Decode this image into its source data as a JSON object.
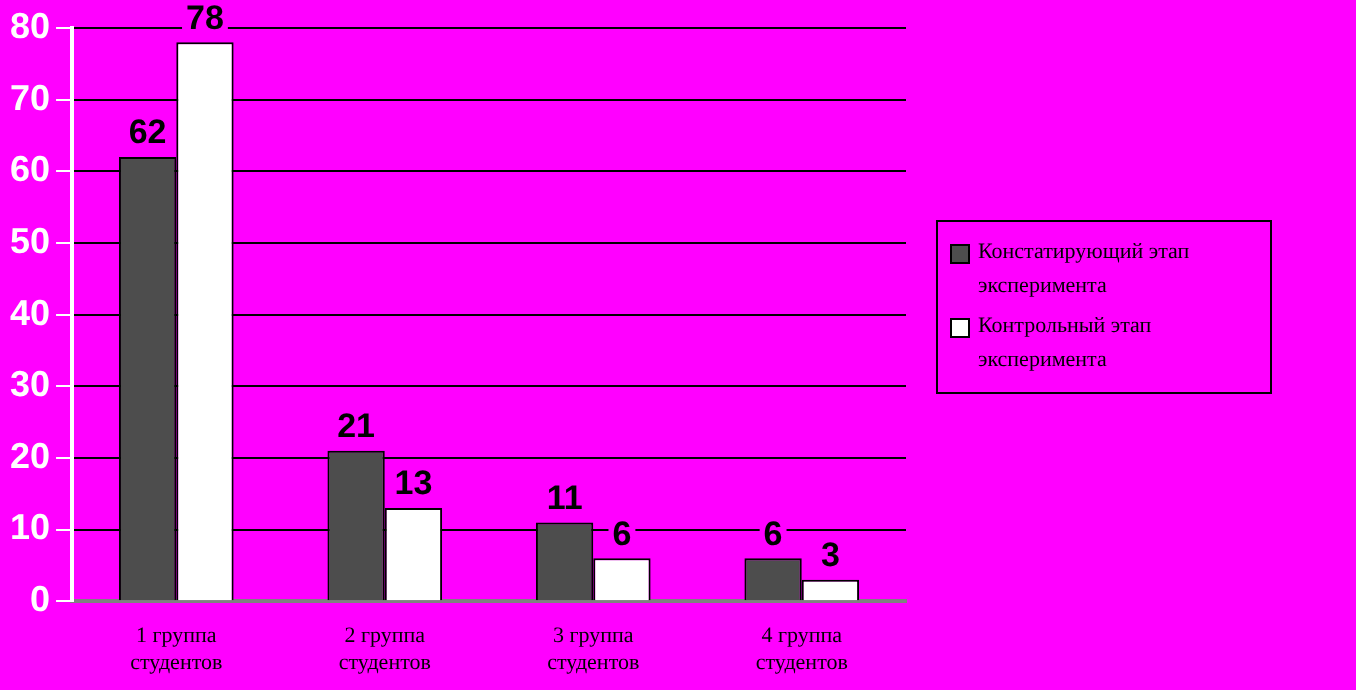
{
  "chart_data": {
    "type": "bar",
    "categories": [
      "1 группа студентов",
      "2 группа студентов",
      "3 группа студентов",
      "4 группа студентов"
    ],
    "series": [
      {
        "name": "Констатирующий этап эксперимента",
        "color": "#4d4d4d",
        "values": [
          62,
          21,
          11,
          6
        ]
      },
      {
        "name": "Контрольный этап эксперимента",
        "color": "#ffffff",
        "values": [
          78,
          13,
          6,
          3
        ]
      }
    ],
    "ylim": [
      0,
      80
    ],
    "yticks": [
      0,
      10,
      20,
      30,
      40,
      50,
      60,
      70,
      80
    ],
    "grid": "y",
    "legend": "right",
    "data_labels": true
  }
}
